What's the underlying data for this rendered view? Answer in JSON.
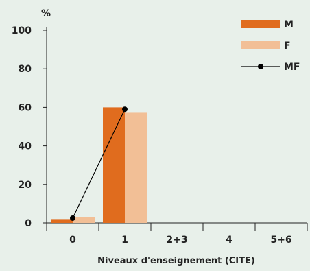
{
  "chart_data": {
    "type": "bar",
    "y_unit_label": "%",
    "xlabel": "Niveaux d'enseignement (CITE)",
    "categories": [
      "0",
      "1",
      "2+3",
      "4",
      "5+6"
    ],
    "ylim": [
      0,
      100
    ],
    "yticks": [
      0,
      20,
      40,
      60,
      80,
      100
    ],
    "series": [
      {
        "name": "M",
        "kind": "bar",
        "color": "#e06c1e",
        "values": [
          2,
          60,
          null,
          null,
          null
        ]
      },
      {
        "name": "F",
        "kind": "bar",
        "color": "#f2bf96",
        "values": [
          3,
          57.5,
          null,
          null,
          null
        ]
      },
      {
        "name": "MF",
        "kind": "line",
        "color": "#000000",
        "values": [
          2.5,
          59,
          null,
          null,
          null
        ]
      }
    ],
    "legend_position": "top-right",
    "grid": false
  }
}
